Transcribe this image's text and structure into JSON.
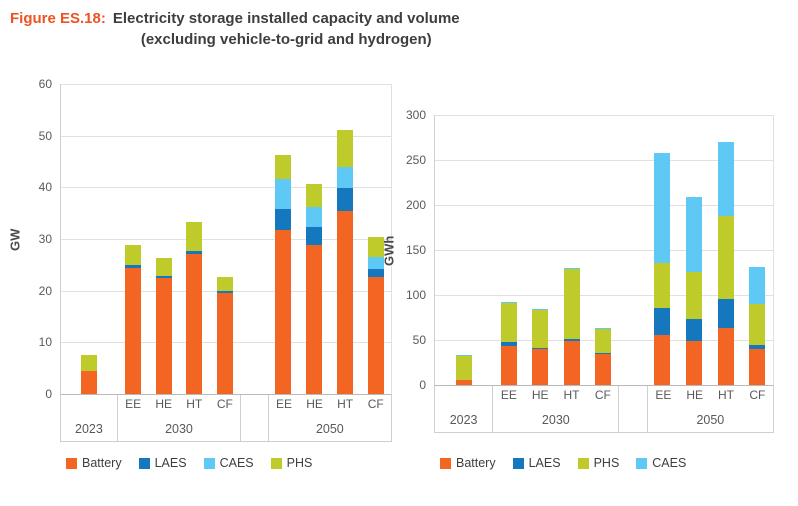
{
  "figure": {
    "label": "Figure ES.18:",
    "title_line1": "Electricity storage installed capacity and volume",
    "title_line2": "(excluding vehicle-to-grid and hydrogen)"
  },
  "colors": {
    "battery": "#F26522",
    "laes": "#1577BE",
    "caes": "#5EC9F4",
    "phs": "#BFCB2B",
    "figure_label": "#EE5322",
    "title_text": "#3E3E3E",
    "gridline": "#E0E0E0",
    "axis_text": "#595959"
  },
  "chart_data": [
    {
      "type": "bar",
      "stacked": true,
      "unit": "GW",
      "ylabel": "GW",
      "ylim": [
        0,
        60
      ],
      "yticks": [
        0,
        10,
        20,
        30,
        40,
        50,
        60
      ],
      "grid": true,
      "legend_position": "bottom",
      "legend": [
        {
          "label": "Battery",
          "color": "#F26522"
        },
        {
          "label": "LAES",
          "color": "#1577BE"
        },
        {
          "label": "CAES",
          "color": "#5EC9F4"
        },
        {
          "label": "PHS",
          "color": "#BFCB2B"
        }
      ],
      "groups": [
        {
          "label": "2023",
          "bars": [
            {
              "sublabel": "",
              "segments": [
                {
                  "name": "Battery",
                  "value": 4.5
                },
                {
                  "name": "PHS",
                  "value": 3.0
                }
              ]
            }
          ]
        },
        {
          "label": "2030",
          "bars": [
            {
              "sublabel": "EE",
              "segments": [
                {
                  "name": "Battery",
                  "value": 24.4
                },
                {
                  "name": "LAES",
                  "value": 0.6
                },
                {
                  "name": "PHS",
                  "value": 3.8
                }
              ]
            },
            {
              "sublabel": "HE",
              "segments": [
                {
                  "name": "Battery",
                  "value": 22.4
                },
                {
                  "name": "LAES",
                  "value": 0.4
                },
                {
                  "name": "PHS",
                  "value": 3.5
                }
              ]
            },
            {
              "sublabel": "HT",
              "segments": [
                {
                  "name": "Battery",
                  "value": 27.1
                },
                {
                  "name": "LAES",
                  "value": 0.6
                },
                {
                  "name": "PHS",
                  "value": 5.6
                }
              ]
            },
            {
              "sublabel": "CF",
              "segments": [
                {
                  "name": "Battery",
                  "value": 19.6
                },
                {
                  "name": "LAES",
                  "value": 0.3
                },
                {
                  "name": "PHS",
                  "value": 2.7
                }
              ]
            }
          ]
        },
        {
          "label": "",
          "bars": []
        },
        {
          "label": "2050",
          "bars": [
            {
              "sublabel": "EE",
              "segments": [
                {
                  "name": "Battery",
                  "value": 31.8
                },
                {
                  "name": "LAES",
                  "value": 4.0
                },
                {
                  "name": "CAES",
                  "value": 5.9
                },
                {
                  "name": "PHS",
                  "value": 4.6
                }
              ]
            },
            {
              "sublabel": "HE",
              "segments": [
                {
                  "name": "Battery",
                  "value": 28.8
                },
                {
                  "name": "LAES",
                  "value": 3.4
                },
                {
                  "name": "CAES",
                  "value": 3.9
                },
                {
                  "name": "PHS",
                  "value": 4.4
                }
              ]
            },
            {
              "sublabel": "HT",
              "segments": [
                {
                  "name": "Battery",
                  "value": 35.4
                },
                {
                  "name": "LAES",
                  "value": 4.4
                },
                {
                  "name": "CAES",
                  "value": 4.0
                },
                {
                  "name": "PHS",
                  "value": 7.1
                }
              ]
            },
            {
              "sublabel": "CF",
              "segments": [
                {
                  "name": "Battery",
                  "value": 22.6
                },
                {
                  "name": "LAES",
                  "value": 1.6
                },
                {
                  "name": "CAES",
                  "value": 2.3
                },
                {
                  "name": "PHS",
                  "value": 3.8
                }
              ]
            }
          ]
        }
      ]
    },
    {
      "type": "bar",
      "stacked": true,
      "unit": "GWh",
      "ylabel": "GWh",
      "ylim": [
        0,
        300
      ],
      "yticks": [
        0,
        50,
        100,
        150,
        200,
        250,
        300
      ],
      "grid": true,
      "legend_position": "bottom",
      "legend": [
        {
          "label": "Battery",
          "color": "#F26522"
        },
        {
          "label": "LAES",
          "color": "#1577BE"
        },
        {
          "label": "PHS",
          "color": "#BFCB2B"
        },
        {
          "label": "CAES",
          "color": "#5EC9F4"
        }
      ],
      "groups": [
        {
          "label": "2023",
          "bars": [
            {
              "sublabel": "",
              "segments": [
                {
                  "name": "Battery",
                  "value": 5
                },
                {
                  "name": "PHS",
                  "value": 27
                },
                {
                  "name": "CAES",
                  "value": 1.5
                }
              ]
            }
          ]
        },
        {
          "label": "2030",
          "bars": [
            {
              "sublabel": "EE",
              "segments": [
                {
                  "name": "Battery",
                  "value": 43
                },
                {
                  "name": "LAES",
                  "value": 4
                },
                {
                  "name": "PHS",
                  "value": 43
                },
                {
                  "name": "CAES",
                  "value": 1
                }
              ]
            },
            {
              "sublabel": "HE",
              "segments": [
                {
                  "name": "Battery",
                  "value": 40
                },
                {
                  "name": "LAES",
                  "value": 1
                },
                {
                  "name": "PHS",
                  "value": 42
                },
                {
                  "name": "CAES",
                  "value": 1
                }
              ]
            },
            {
              "sublabel": "HT",
              "segments": [
                {
                  "name": "Battery",
                  "value": 49
                },
                {
                  "name": "LAES",
                  "value": 2
                },
                {
                  "name": "PHS",
                  "value": 78
                },
                {
                  "name": "CAES",
                  "value": 1
                }
              ]
            },
            {
              "sublabel": "CF",
              "segments": [
                {
                  "name": "Battery",
                  "value": 34
                },
                {
                  "name": "LAES",
                  "value": 1
                },
                {
                  "name": "PHS",
                  "value": 27
                },
                {
                  "name": "CAES",
                  "value": 1
                }
              ]
            }
          ]
        },
        {
          "label": "",
          "bars": []
        },
        {
          "label": "2050",
          "bars": [
            {
              "sublabel": "EE",
              "segments": [
                {
                  "name": "Battery",
                  "value": 56
                },
                {
                  "name": "LAES",
                  "value": 30
                },
                {
                  "name": "PHS",
                  "value": 50
                },
                {
                  "name": "CAES",
                  "value": 122
                }
              ]
            },
            {
              "sublabel": "HE",
              "segments": [
                {
                  "name": "Battery",
                  "value": 49
                },
                {
                  "name": "LAES",
                  "value": 24
                },
                {
                  "name": "PHS",
                  "value": 52
                },
                {
                  "name": "CAES",
                  "value": 83
                }
              ]
            },
            {
              "sublabel": "HT",
              "segments": [
                {
                  "name": "Battery",
                  "value": 63
                },
                {
                  "name": "LAES",
                  "value": 32
                },
                {
                  "name": "PHS",
                  "value": 92
                },
                {
                  "name": "CAES",
                  "value": 82
                }
              ]
            },
            {
              "sublabel": "CF",
              "segments": [
                {
                  "name": "Battery",
                  "value": 40
                },
                {
                  "name": "LAES",
                  "value": 4
                },
                {
                  "name": "PHS",
                  "value": 46
                },
                {
                  "name": "CAES",
                  "value": 41
                }
              ]
            }
          ]
        }
      ]
    }
  ]
}
